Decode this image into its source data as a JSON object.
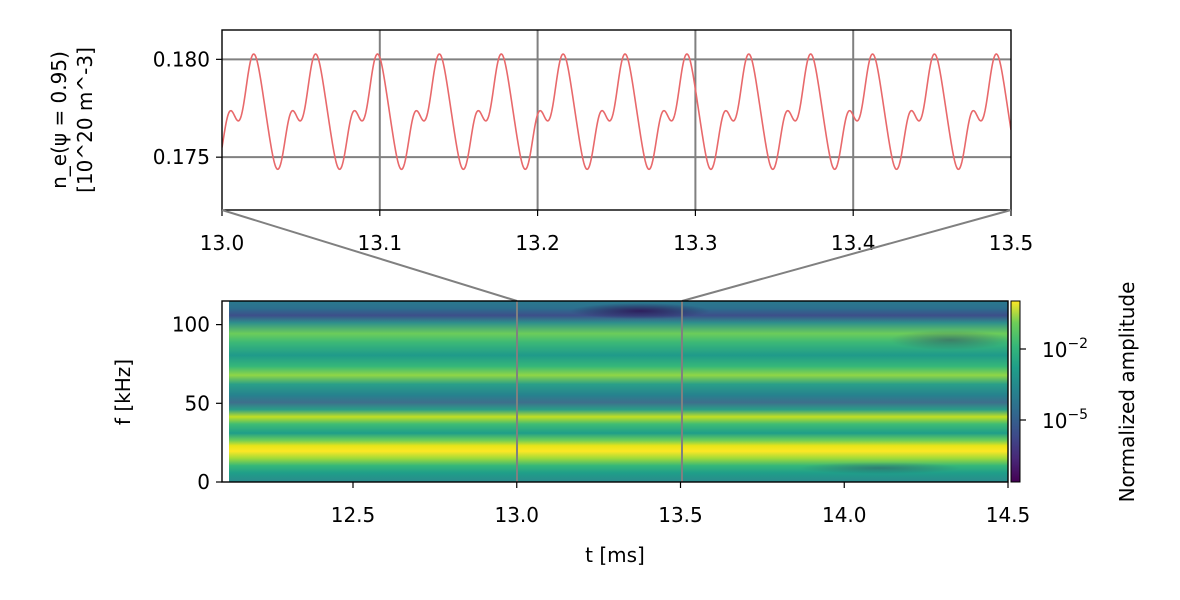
{
  "chart_data": [
    {
      "type": "line",
      "xlim": [
        13.0,
        13.5
      ],
      "ylim": [
        0.1723,
        0.1815
      ],
      "xticks": [
        13.0,
        13.1,
        13.2,
        13.3,
        13.4,
        13.5
      ],
      "xtick_labels": [
        "13.0",
        "13.1",
        "13.2",
        "13.3",
        "13.4",
        "13.5"
      ],
      "yticks": [
        0.175,
        0.18
      ],
      "ytick_labels": [
        "0.175",
        "0.180"
      ],
      "ylabel_line1": "n_e(ψ = 0.95)",
      "ylabel_line2": "[10^20 m^-3]",
      "grid": true,
      "color": "#e8696b",
      "series": [
        {
          "mean": 0.17725,
          "components": [
            {
              "freq_khz": 25.5,
              "amplitude": 0.0022,
              "phase": 1.8
            },
            {
              "freq_khz": 51.0,
              "amplitude": 0.0011,
              "phase": 0.6
            },
            {
              "freq_khz": 76.5,
              "amplitude": 0.00035,
              "phase": 2.4
            }
          ]
        }
      ]
    },
    {
      "type": "heatmap",
      "xlim": [
        12.1,
        14.5
      ],
      "ylim": [
        0,
        115
      ],
      "xticks": [
        12.5,
        13.0,
        13.5,
        14.0,
        14.5
      ],
      "xtick_labels": [
        "12.5",
        "13.0",
        "13.5",
        "14.0",
        "14.5"
      ],
      "yticks": [
        0,
        50,
        100
      ],
      "ytick_labels": [
        "0",
        "50",
        "100"
      ],
      "xlabel": "t [ms]",
      "ylabel": "f [kHz]",
      "colormap": "viridis",
      "colorbar": {
        "label": "Normalized amplitude",
        "scale": "log",
        "tick_labels": [
          "10^-2",
          "10^-5"
        ]
      },
      "zoom_window": [
        13.0,
        13.5
      ],
      "bands_khz": [
        {
          "f": 26,
          "level": 1.0
        },
        {
          "f": 52,
          "level": 0.85
        },
        {
          "f": 78,
          "level": 0.7
        },
        {
          "f": 102,
          "level": 0.5
        }
      ],
      "dark_spot": {
        "t": 13.4,
        "f": 110
      }
    }
  ]
}
